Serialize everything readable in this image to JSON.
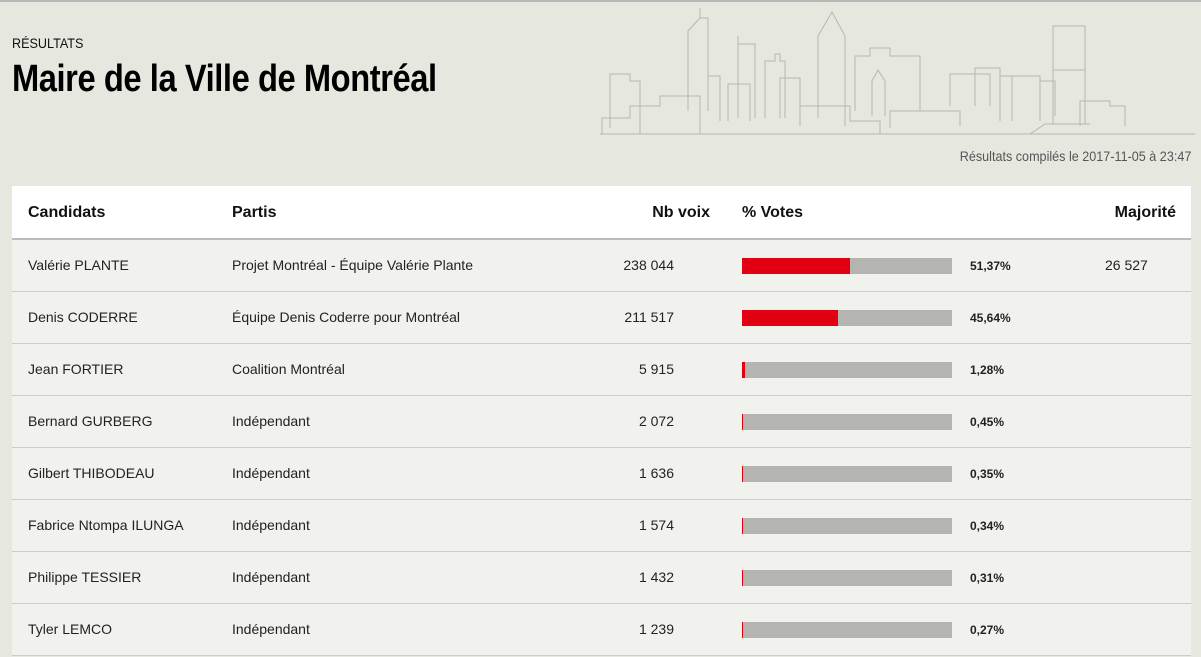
{
  "header": {
    "kicker": "RÉSULTATS",
    "title": "Maire de la Ville de Montréal",
    "compiled": "Résultats compilés le 2017-11-05 à 23:47"
  },
  "table": {
    "columns": [
      "Candidats",
      "Partis",
      "Nb voix",
      "% Votes",
      "Majorité"
    ],
    "rows": [
      {
        "candidate": "Valérie PLANTE",
        "party": "Projet Montréal - Équipe Valérie Plante",
        "votes": "238 044",
        "pct_label": "51,37%",
        "pct": 51.37,
        "majority": "26 527"
      },
      {
        "candidate": "Denis CODERRE",
        "party": "Équipe Denis Coderre pour Montréal",
        "votes": "211 517",
        "pct_label": "45,64%",
        "pct": 45.64,
        "majority": ""
      },
      {
        "candidate": "Jean FORTIER",
        "party": "Coalition Montréal",
        "votes": "5 915",
        "pct_label": "1,28%",
        "pct": 1.28,
        "majority": ""
      },
      {
        "candidate": "Bernard GURBERG",
        "party": "Indépendant",
        "votes": "2 072",
        "pct_label": "0,45%",
        "pct": 0.45,
        "majority": ""
      },
      {
        "candidate": "Gilbert THIBODEAU",
        "party": "Indépendant",
        "votes": "1 636",
        "pct_label": "0,35%",
        "pct": 0.35,
        "majority": ""
      },
      {
        "candidate": "Fabrice Ntompa ILUNGA",
        "party": "Indépendant",
        "votes": "1 574",
        "pct_label": "0,34%",
        "pct": 0.34,
        "majority": ""
      },
      {
        "candidate": "Philippe TESSIER",
        "party": "Indépendant",
        "votes": "1 432",
        "pct_label": "0,31%",
        "pct": 0.31,
        "majority": ""
      },
      {
        "candidate": "Tyler LEMCO",
        "party": "Indépendant",
        "votes": "1 239",
        "pct_label": "0,27%",
        "pct": 0.27,
        "majority": ""
      }
    ]
  },
  "colors": {
    "accent": "#e00012",
    "bar_bg": "#b4b4b0"
  }
}
